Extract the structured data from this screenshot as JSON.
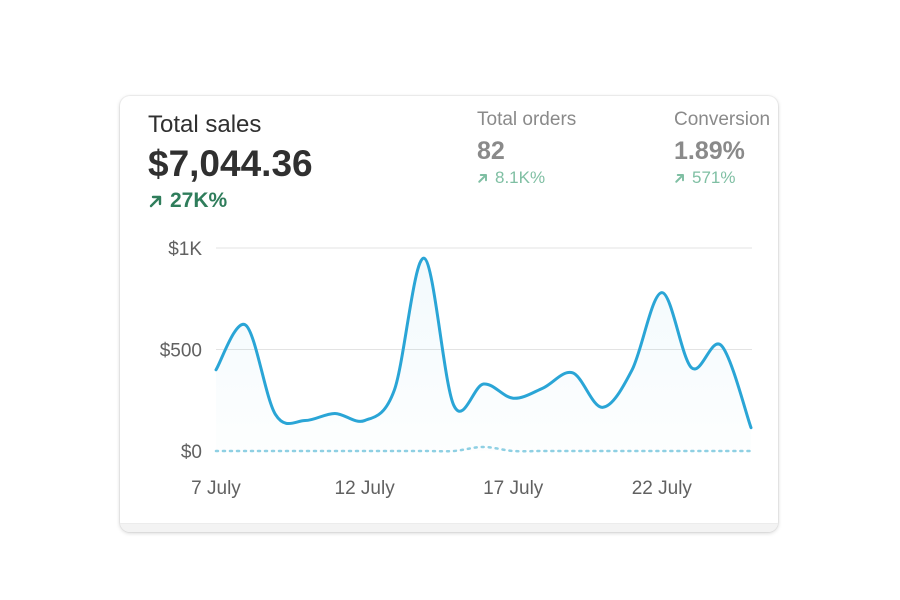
{
  "metrics": {
    "total_sales": {
      "label": "Total sales",
      "value": "$7,044.36",
      "change": "27K%",
      "icon": "arrow-up-right-icon"
    },
    "total_orders": {
      "label": "Total orders",
      "value": "82",
      "change": "8.1K%",
      "icon": "arrow-up-right-icon"
    },
    "conversion": {
      "label": "Conversion",
      "value": "1.89%",
      "change": "571%",
      "icon": "arrow-up-right-icon"
    }
  },
  "colors": {
    "current_line": "#2aa5d6",
    "previous_line": "#8fd0e3",
    "positive_change": "#2f7d5b",
    "gridline": "#e3e3e3"
  },
  "chart_data": {
    "type": "line",
    "x": [
      "7 July",
      "8 July",
      "9 July",
      "10 July",
      "11 July",
      "12 July",
      "13 July",
      "14 July",
      "15 July",
      "16 July",
      "17 July",
      "18 July",
      "19 July",
      "20 July",
      "21 July",
      "22 July",
      "23 July",
      "24 July",
      "25 July"
    ],
    "x_tick_labels": [
      "7 July",
      "12 July",
      "17 July",
      "22 July"
    ],
    "y_tick_labels": [
      "$0",
      "$500",
      "$1K"
    ],
    "ylim": [
      0,
      1000
    ],
    "grid": true,
    "series": [
      {
        "values": [
          400,
          620,
          180,
          150,
          185,
          150,
          300,
          950,
          225,
          330,
          260,
          310,
          385,
          215,
          400,
          780,
          410,
          520,
          115
        ]
      },
      {
        "values": [
          0,
          0,
          0,
          0,
          0,
          0,
          0,
          0,
          0,
          20,
          0,
          0,
          0,
          0,
          0,
          0,
          0,
          0,
          0
        ]
      }
    ]
  }
}
